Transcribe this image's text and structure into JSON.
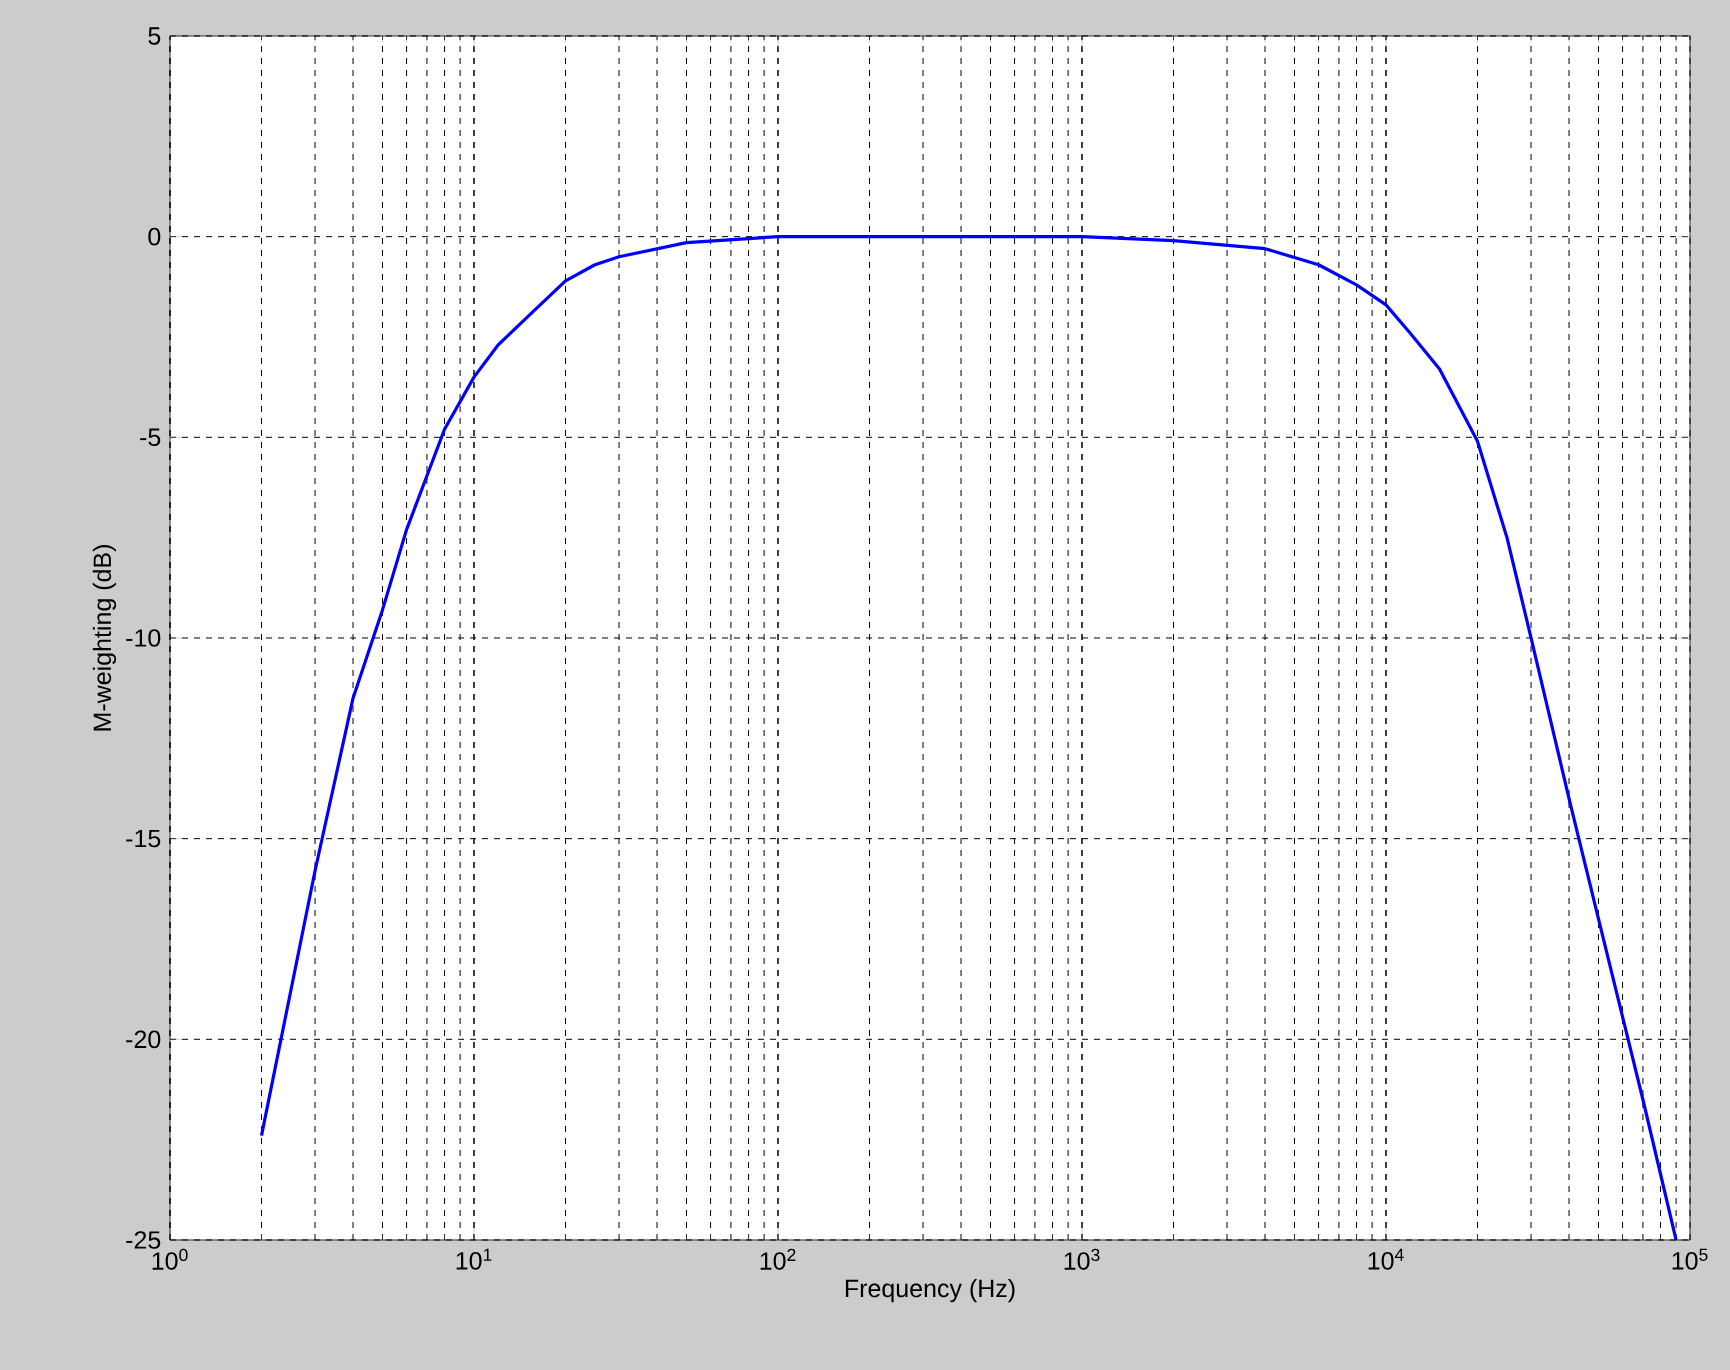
{
  "chart_data": {
    "type": "line",
    "xlabel": "Frequency (Hz)",
    "ylabel": "M-weighting (dB)",
    "log": "x",
    "grid": true,
    "xlim": [
      1,
      100000
    ],
    "ylim": [
      -25,
      5
    ],
    "xticks": [
      {
        "value": 1,
        "label": "10$^{0}$"
      },
      {
        "value": 10,
        "label": "10$^{1}$"
      },
      {
        "value": 100,
        "label": "10$^{2}$"
      },
      {
        "value": 1000,
        "label": "10$^{3}$"
      },
      {
        "value": 10000,
        "label": "10$^{4}$"
      },
      {
        "value": 100000,
        "label": "10$^{5}$"
      }
    ],
    "yticks": [
      -25,
      -20,
      -15,
      -10,
      -5,
      0,
      5
    ],
    "series": [
      {
        "color": "#0000ff",
        "x": [
          2,
          3,
          4,
          5,
          6,
          8,
          10,
          12,
          15,
          20,
          25,
          30,
          50,
          100,
          1000,
          2000,
          4000,
          6000,
          8000,
          10000,
          12000,
          15000,
          20000,
          25000,
          30000,
          40000,
          50000,
          70000,
          90000
        ],
        "values": [
          -22.4,
          -15.8,
          -11.5,
          -9.3,
          -7.3,
          -4.8,
          -3.5,
          -2.7,
          -2,
          -1.1,
          -0.7,
          -0.5,
          -0.15,
          0,
          0,
          -0.1,
          -0.3,
          -0.7,
          -1.2,
          -1.7,
          -2.4,
          -3.3,
          -5.1,
          -7.5,
          -10,
          -14,
          -17,
          -21.5,
          -25
        ]
      }
    ]
  }
}
